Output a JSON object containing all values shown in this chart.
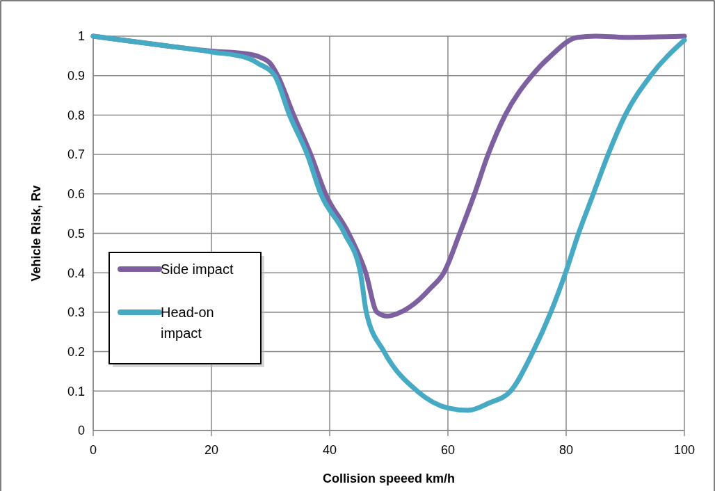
{
  "chart_data": {
    "type": "line",
    "xlabel": "Collision speeed  km/h",
    "ylabel": "Vehicle Risk, Rv",
    "xlim": [
      0,
      100
    ],
    "ylim": [
      0,
      1
    ],
    "xticks": [
      0,
      20,
      40,
      60,
      80,
      100
    ],
    "yticks": [
      0,
      0.1,
      0.2,
      0.3,
      0.4,
      0.5,
      0.6,
      0.7,
      0.8,
      0.9,
      1
    ],
    "grid": true,
    "legend": "left",
    "line_style": "solid",
    "marker": "none",
    "series": [
      {
        "name": "Side impact",
        "color": "#7d60a0",
        "x": [
          0,
          10,
          20,
          26,
          28,
          30,
          31.2,
          33.9,
          36.8,
          39.3,
          43.2,
          46.1,
          48,
          49.8,
          52,
          55,
          57,
          59.3,
          62,
          64.5,
          66.8,
          69.7,
          74.2,
          77.4,
          81.9,
          85,
          90,
          100
        ],
        "values": [
          1,
          0.98,
          0.962,
          0.955,
          0.948,
          0.93,
          0.9,
          0.8,
          0.7,
          0.6,
          0.5,
          0.4,
          0.3,
          0.29,
          0.3,
          0.33,
          0.36,
          0.4,
          0.5,
          0.6,
          0.7,
          0.8,
          0.9,
          0.95,
          0.997,
          1,
          0.997,
          1
        ]
      },
      {
        "name": "Head-on impact",
        "color": "#46aac5",
        "x": [
          0,
          10,
          20,
          26,
          28,
          30.7,
          33.2,
          36.2,
          38.5,
          42.5,
          45.2,
          46.2,
          49.2,
          54.8,
          60,
          63.4,
          67,
          70.6,
          74.4,
          77.4,
          79.9,
          82.1,
          84.6,
          87.1,
          90,
          94.3,
          100
        ],
        "values": [
          1,
          0.98,
          0.96,
          0.945,
          0.93,
          0.9,
          0.8,
          0.7,
          0.6,
          0.5,
          0.4,
          0.3,
          0.2,
          0.1,
          0.057,
          0.051,
          0.07,
          0.1,
          0.2,
          0.3,
          0.4,
          0.5,
          0.6,
          0.7,
          0.8,
          0.9,
          0.99
        ]
      }
    ]
  }
}
